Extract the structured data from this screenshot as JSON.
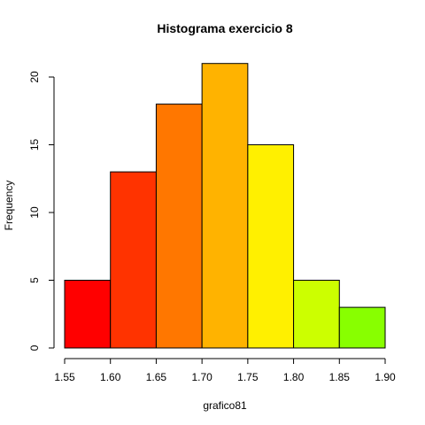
{
  "chart_data": {
    "type": "bar",
    "title": "Histograma exercicio 8",
    "xlabel": "grafico81",
    "ylabel": "Frequency",
    "bin_edges": [
      1.55,
      1.6,
      1.65,
      1.7,
      1.75,
      1.8,
      1.85,
      1.9
    ],
    "values": [
      5,
      13,
      18,
      21,
      15,
      5,
      3
    ],
    "xlim": [
      1.55,
      1.9
    ],
    "ylim": [
      0,
      21
    ],
    "x_ticks": [
      "1.55",
      "1.60",
      "1.65",
      "1.70",
      "1.75",
      "1.80",
      "1.85",
      "1.90"
    ],
    "y_ticks": [
      "0",
      "5",
      "10",
      "15",
      "20"
    ],
    "grid": false,
    "colors": [
      "#FF0000",
      "#FF3300",
      "#FF7700",
      "#FFB300",
      "#FFF000",
      "#CCFF00",
      "#88FF00"
    ]
  }
}
